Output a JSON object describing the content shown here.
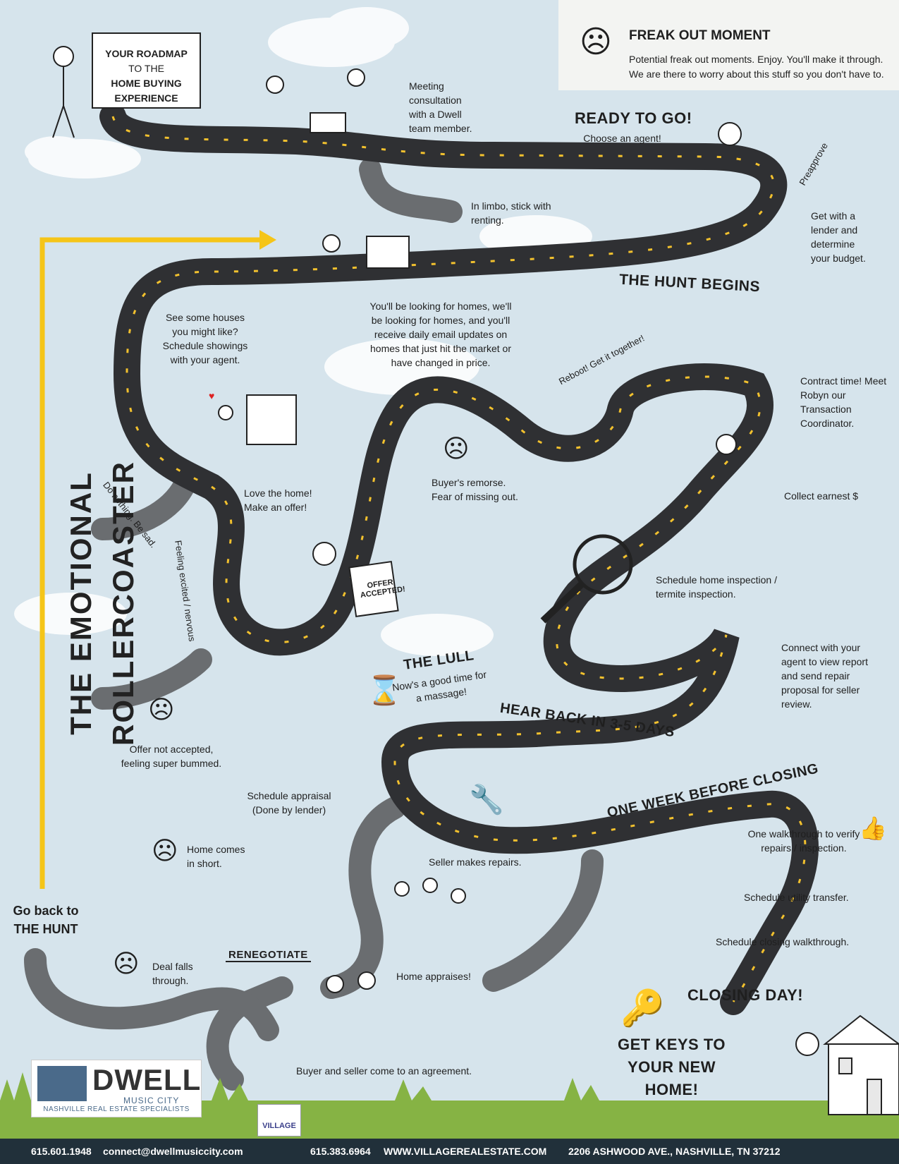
{
  "legend": {
    "title": "FREAK OUT MOMENT",
    "description": "Potential freak out moments. Enjoy. You'll make it through. We are there to worry about this stuff so you don't have to."
  },
  "sign": {
    "line1": "YOUR ROADMAP",
    "line2": "TO THE",
    "line3": "HOME BUYING",
    "line4": "EXPERIENCE"
  },
  "side_title": "THE EMOTIONAL ROLLERCOASTER",
  "go_back": {
    "line1": "Go back to",
    "line2": "THE HUNT"
  },
  "stages": {
    "ready": "READY TO GO!",
    "ready_sub": "Choose an agent!",
    "hunt": "THE HUNT BEGINS",
    "lull": "THE LULL",
    "lull_sub": "Now's a good time for a massage!",
    "hear_back": "HEAR BACK IN 3-5 DAYS",
    "one_week": "ONE WEEK BEFORE CLOSING",
    "closing": "CLOSING DAY!",
    "keys": "GET KEYS TO YOUR NEW HOME!",
    "renegotiate": "RENEGOTIATE"
  },
  "notes": {
    "meeting": "Meeting consultation with a Dwell team member.",
    "limbo": "In limbo, stick with renting.",
    "lender": "Get with a lender and determine your budget.",
    "looking": "You'll be looking for homes, we'll be looking for homes, and you'll receive daily email updates on homes that just hit the market or have changed in price.",
    "see_houses": "See some houses you might like? Schedule showings with your agent.",
    "contract": "Contract time! Meet Robyn our Transaction Coordinator.",
    "remorse": "Buyer's remorse. Fear of missing out.",
    "earnest": "Collect earnest $",
    "love": "Love the home! Make an offer!",
    "inspection": "Schedule home inspection / termite inspection.",
    "connect": "Connect with your agent to view report and send repair proposal for seller review.",
    "not_accepted": "Offer not accepted, feeling super bummed.",
    "appraisal": "Schedule appraisal (Done by lender)",
    "short": "Home comes in short.",
    "repairs": "Seller makes repairs.",
    "walkthrough": "One walkthrough to verify repairs / inspection.",
    "utility": "Schedule utility transfer.",
    "closing_walk": "Schedule closing walkthrough.",
    "appraises": "Home appraises!",
    "falls": "Deal falls through.",
    "agreement": "Buyer and seller come to an agreement."
  },
  "road_labels": {
    "reboot": "Reboot! Get it together!",
    "do_nothing": "Do nothing. Be sad.",
    "excited": "Feeling excited / nervous"
  },
  "props": {
    "preapprove": "Preapprove",
    "offer": "OFFER ACCEPTED!"
  },
  "logo": {
    "name": "DWELL",
    "sub": "MUSIC CITY",
    "tagline": "NASHVILLE REAL ESTATE SPECIALISTS",
    "village": "VILLAGE"
  },
  "footer": {
    "phone1": "615.601.1948",
    "email": "connect@dwellmusiccity.com",
    "phone2": "615.383.6964",
    "website": "WWW.VILLAGEREALESTATE.COM",
    "address": "2206 ASHWOOD AVE., NASHVILLE, TN 37212"
  },
  "colors": {
    "road": "#2f3033",
    "road_gray": "#6a6d70",
    "dash": "#f2c12e",
    "arrow": "#f5c518",
    "sky": "#d6e4ec",
    "grass": "#6f9a36"
  }
}
